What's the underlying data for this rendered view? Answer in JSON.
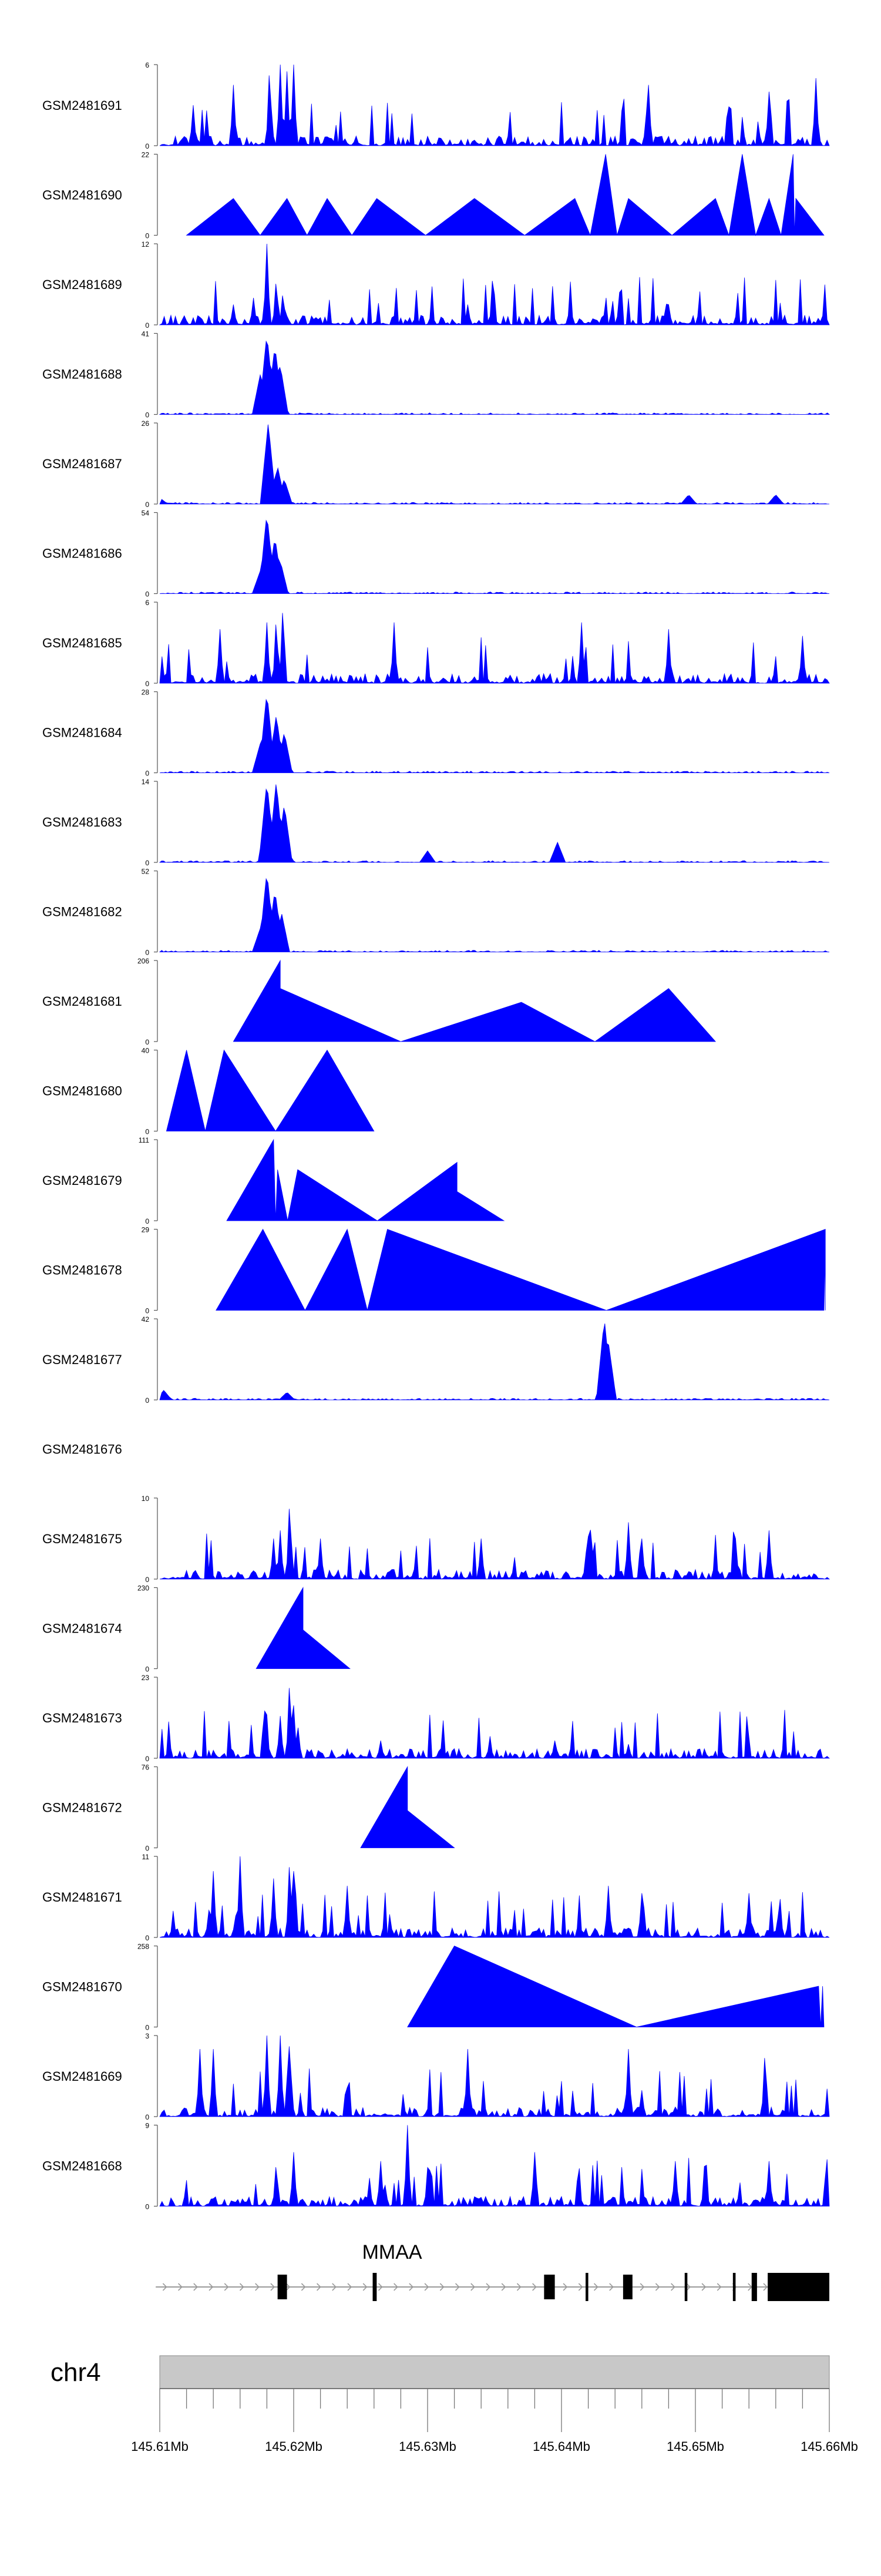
{
  "colors": {
    "signal": "#0000ff",
    "axis": "#555555",
    "gene": "#000000",
    "chrom_bar": "#c8c8c8",
    "intron": "#9a9a9a"
  },
  "chart_data": {
    "type": "area",
    "genome": {
      "chromosome": "chr4",
      "start": 145.61,
      "end": 145.66,
      "unit": "Mb"
    },
    "x_ticks": [
      "145.61Mb",
      "145.62Mb",
      "145.63Mb",
      "145.64Mb",
      "145.65Mb",
      "145.66Mb"
    ],
    "x_tick_values": [
      145.61,
      145.62,
      145.63,
      145.64,
      145.65,
      145.66
    ],
    "gene": {
      "name": "MMAA",
      "strand": "+",
      "start": 145.6097,
      "end": 145.66,
      "exons": [
        [
          145.6188,
          145.6195
        ],
        [
          145.6259,
          145.6262
        ],
        [
          145.6387,
          145.6395
        ],
        [
          145.6418,
          145.642
        ],
        [
          145.6446,
          145.6453
        ],
        [
          145.6492,
          145.6494
        ],
        [
          145.6528,
          145.653
        ],
        [
          145.6542,
          145.6546
        ],
        [
          145.6554,
          145.66
        ]
      ]
    },
    "series": [
      {
        "name": "GSM2481691",
        "ymax": "6",
        "ymin": "0",
        "profile": "spiky",
        "peaks": [
          [
            145.6182,
            6
          ],
          [
            145.619,
            6
          ],
          [
            145.6195,
            5.5
          ],
          [
            145.62,
            6
          ],
          [
            145.6155,
            4.5
          ],
          [
            145.6465,
            4.5
          ],
          [
            145.6555,
            4
          ],
          [
            145.659,
            5
          ],
          [
            145.6125,
            3
          ]
        ]
      },
      {
        "name": "GSM2481690",
        "ymax": "22",
        "ymin": "0",
        "profile": "triangles",
        "peaks": [
          [
            145.6155,
            10
          ],
          [
            145.6195,
            10
          ],
          [
            145.6225,
            10
          ],
          [
            145.6262,
            10
          ],
          [
            145.6335,
            10
          ],
          [
            145.641,
            10
          ],
          [
            145.6433,
            22
          ],
          [
            145.645,
            10
          ],
          [
            145.6515,
            10
          ],
          [
            145.6535,
            22
          ],
          [
            145.6555,
            10
          ],
          [
            145.6573,
            22
          ],
          [
            145.6575,
            10
          ]
        ]
      },
      {
        "name": "GSM2481689",
        "ymax": "12",
        "ymin": "0",
        "profile": "spiky",
        "peaks": [
          [
            145.618,
            12
          ],
          [
            145.6187,
            7
          ],
          [
            145.6192,
            5
          ],
          [
            145.617,
            4
          ],
          [
            145.6155,
            3
          ],
          [
            145.633,
            3
          ],
          [
            145.648,
            3
          ]
        ]
      },
      {
        "name": "GSM2481688",
        "ymax": "41",
        "ymin": "0",
        "profile": "single_peak",
        "peaks": [
          [
            145.618,
            41
          ],
          [
            145.6186,
            35
          ],
          [
            145.619,
            25
          ],
          [
            145.6175,
            20
          ]
        ]
      },
      {
        "name": "GSM2481687",
        "ymax": "26",
        "ymin": "0",
        "profile": "single_peak",
        "peaks": [
          [
            145.6181,
            26
          ],
          [
            145.6188,
            12
          ],
          [
            145.6193,
            8
          ],
          [
            145.6495,
            3
          ],
          [
            145.656,
            3
          ],
          [
            145.61,
            2
          ]
        ]
      },
      {
        "name": "GSM2481686",
        "ymax": "54",
        "ymin": "0",
        "profile": "single_peak",
        "peaks": [
          [
            145.618,
            54
          ],
          [
            145.6186,
            38
          ],
          [
            145.619,
            22
          ],
          [
            145.6175,
            15
          ]
        ]
      },
      {
        "name": "GSM2481685",
        "ymax": "6",
        "ymin": "0",
        "profile": "spiky",
        "peaks": [
          [
            145.6192,
            6
          ],
          [
            145.6187,
            5
          ],
          [
            145.618,
            4.5
          ],
          [
            145.6145,
            4
          ],
          [
            145.6275,
            4.5
          ],
          [
            145.6415,
            4.5
          ],
          [
            145.648,
            4
          ],
          [
            145.658,
            3.5
          ]
        ]
      },
      {
        "name": "GSM2481684",
        "ymax": "28",
        "ymin": "0",
        "profile": "single_peak",
        "peaks": [
          [
            145.618,
            28
          ],
          [
            145.6187,
            20
          ],
          [
            145.6193,
            14
          ],
          [
            145.6175,
            10
          ]
        ]
      },
      {
        "name": "GSM2481683",
        "ymax": "14",
        "ymin": "0",
        "profile": "single_peak",
        "peaks": [
          [
            145.618,
            14
          ],
          [
            145.6187,
            14
          ],
          [
            145.6193,
            10
          ],
          [
            145.6397,
            3.5
          ],
          [
            145.63,
            2
          ]
        ]
      },
      {
        "name": "GSM2481682",
        "ymax": "52",
        "ymin": "0",
        "profile": "single_peak",
        "peaks": [
          [
            145.618,
            52
          ],
          [
            145.6186,
            40
          ],
          [
            145.6191,
            25
          ],
          [
            145.6175,
            15
          ]
        ]
      },
      {
        "name": "GSM2481681",
        "ymax": "206",
        "ymin": "0",
        "profile": "triangles",
        "peaks": [
          [
            145.619,
            206
          ],
          [
            145.619,
            135
          ],
          [
            145.637,
            100
          ],
          [
            145.648,
            135
          ]
        ]
      },
      {
        "name": "GSM2481680",
        "ymax": "40",
        "ymin": "0",
        "profile": "triangles",
        "peaks": [
          [
            145.612,
            40
          ],
          [
            145.6148,
            40
          ],
          [
            145.6225,
            40
          ]
        ]
      },
      {
        "name": "GSM2481679",
        "ymax": "111",
        "ymin": "0",
        "profile": "triangles",
        "peaks": [
          [
            145.6185,
            111
          ],
          [
            145.6188,
            70
          ],
          [
            145.6203,
            70
          ],
          [
            145.6322,
            80
          ],
          [
            145.6322,
            40
          ]
        ]
      },
      {
        "name": "GSM2481678",
        "ymax": "29",
        "ymin": "0",
        "profile": "triangles",
        "peaks": [
          [
            145.6177,
            29
          ],
          [
            145.624,
            29
          ],
          [
            145.627,
            29
          ],
          [
            145.6597,
            29
          ],
          [
            145.6597,
            20
          ]
        ]
      },
      {
        "name": "GSM2481677",
        "ymax": "42",
        "ymin": "0",
        "profile": "single_peak",
        "peaks": [
          [
            145.6432,
            42
          ],
          [
            145.6435,
            30
          ],
          [
            145.6103,
            5
          ],
          [
            145.6195,
            4
          ]
        ]
      },
      {
        "name": "GSM2481676",
        "ymax": "",
        "ymin": "",
        "profile": "empty",
        "peaks": []
      },
      {
        "name": "GSM2481675",
        "ymax": "10",
        "ymin": "0",
        "profile": "spiky",
        "peaks": [
          [
            145.6197,
            10
          ],
          [
            145.619,
            6
          ],
          [
            145.6185,
            5
          ],
          [
            145.622,
            5
          ],
          [
            145.634,
            5
          ],
          [
            145.6422,
            7
          ],
          [
            145.645,
            7
          ],
          [
            145.646,
            5
          ],
          [
            145.653,
            5
          ],
          [
            145.6555,
            6
          ]
        ]
      },
      {
        "name": "GSM2481674",
        "ymax": "230",
        "ymin": "0",
        "profile": "triangles",
        "peaks": [
          [
            145.6207,
            230
          ],
          [
            145.6207,
            110
          ]
        ]
      },
      {
        "name": "GSM2481673",
        "ymax": "23",
        "ymin": "0",
        "profile": "spiky",
        "peaks": [
          [
            145.6197,
            23
          ],
          [
            145.619,
            12
          ],
          [
            145.62,
            15
          ],
          [
            145.6203,
            10
          ],
          [
            145.6265,
            5
          ],
          [
            145.6395,
            5
          ],
          [
            145.645,
            4
          ]
        ]
      },
      {
        "name": "GSM2481672",
        "ymax": "76",
        "ymin": "0",
        "profile": "triangles",
        "peaks": [
          [
            145.6285,
            76
          ],
          [
            145.6285,
            35
          ]
        ]
      },
      {
        "name": "GSM2481671",
        "ymax": "11",
        "ymin": "0",
        "profile": "spiky",
        "peaks": [
          [
            145.616,
            11
          ],
          [
            145.6197,
            11
          ],
          [
            145.614,
            9
          ],
          [
            145.6185,
            8
          ],
          [
            145.62,
            9
          ],
          [
            145.624,
            7
          ],
          [
            145.6435,
            7
          ],
          [
            145.646,
            6
          ],
          [
            145.654,
            6
          ],
          [
            145.6563,
            6
          ]
        ]
      },
      {
        "name": "GSM2481670",
        "ymax": "258",
        "ymin": "0",
        "profile": "triangles",
        "peaks": [
          [
            145.632,
            258
          ],
          [
            145.6595,
            130
          ],
          [
            145.6592,
            130
          ]
        ]
      },
      {
        "name": "GSM2481669",
        "ymax": "3",
        "ymin": "0",
        "profile": "spiky",
        "peaks": [
          [
            145.619,
            3
          ],
          [
            145.618,
            3
          ],
          [
            145.6197,
            3
          ],
          [
            145.613,
            2.5
          ],
          [
            145.614,
            2.5
          ],
          [
            145.633,
            2.5
          ],
          [
            145.645,
            2.5
          ],
          [
            145.6552,
            2.5
          ]
        ]
      },
      {
        "name": "GSM2481668",
        "ymax": "9",
        "ymin": "0",
        "profile": "spiky",
        "peaks": [
          [
            145.6285,
            9
          ],
          [
            145.6187,
            5
          ],
          [
            145.62,
            6
          ],
          [
            145.6265,
            5
          ],
          [
            145.638,
            6
          ],
          [
            145.6485,
            5
          ],
          [
            145.6555,
            5
          ],
          [
            145.6598,
            6
          ]
        ]
      }
    ]
  }
}
